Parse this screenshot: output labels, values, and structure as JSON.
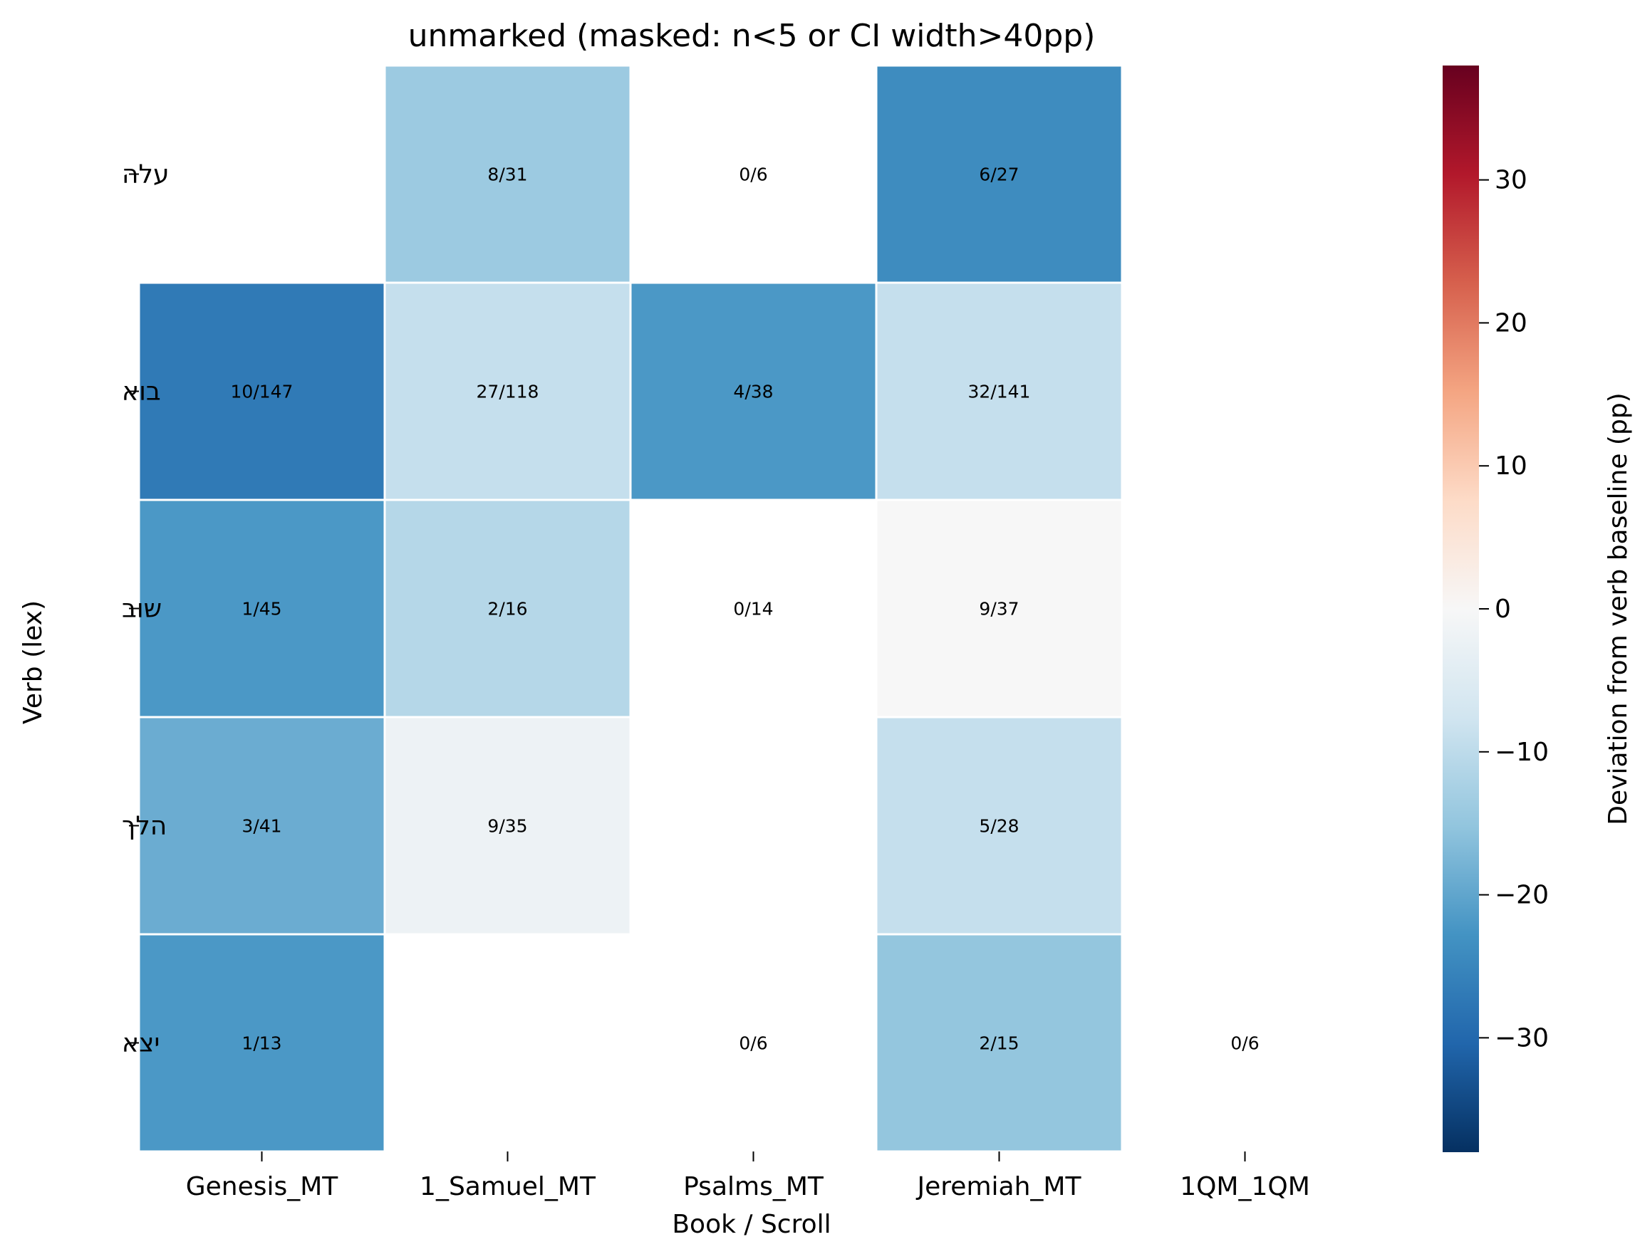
{
  "chart_data": {
    "type": "heatmap",
    "title": "unmarked (masked: n<5 or CI width>40pp)",
    "xlabel": "Book / Scroll",
    "ylabel": "Verb (lex)",
    "x_categories": [
      "Genesis_MT",
      "1_Samuel_MT",
      "Psalms_MT",
      "Jeremiah_MT",
      "1QM_1QM"
    ],
    "y_categories": [
      "עלה",
      "בוא",
      "שוב",
      "הלך",
      "יצא"
    ],
    "values": [
      [
        null,
        -14,
        null,
        -24,
        null
      ],
      [
        -27,
        -9,
        -22,
        -9,
        null
      ],
      [
        -22,
        -11,
        null,
        0,
        null
      ],
      [
        -19,
        -2,
        null,
        -9,
        null
      ],
      [
        -22,
        null,
        null,
        -15,
        null
      ]
    ],
    "annotations": [
      [
        "",
        "8/31",
        "0/6",
        "6/27",
        ""
      ],
      [
        "10/147",
        "27/118",
        "4/38",
        "32/141",
        ""
      ],
      [
        "1/45",
        "2/16",
        "0/14",
        "9/37",
        ""
      ],
      [
        "3/41",
        "9/35",
        "",
        "5/28",
        ""
      ],
      [
        "1/13",
        "",
        "0/6",
        "2/15",
        "0/6"
      ]
    ],
    "colorbar": {
      "label": "Deviation from verb baseline (pp)",
      "colormap": "RdBu_r",
      "vmin": -38,
      "vmax": 38,
      "ticks": [
        30,
        20,
        10,
        0,
        -10,
        -20,
        -30
      ],
      "tick_labels": [
        "30",
        "20",
        "10",
        "0",
        "−10",
        "−20",
        "−30"
      ]
    },
    "grid": false
  }
}
